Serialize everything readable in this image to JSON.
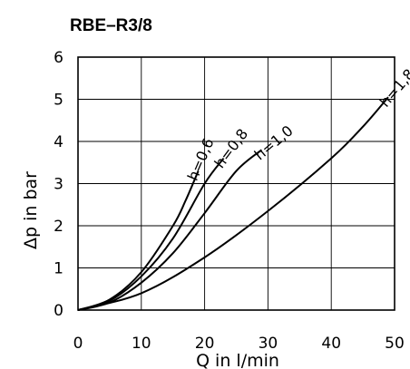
{
  "chart_data": {
    "type": "line",
    "title": "RBE–R3/8",
    "xlabel": "Q in l/min",
    "ylabel": "Δp in bar",
    "xlim": [
      0,
      50
    ],
    "ylim": [
      0,
      6
    ],
    "x_ticks": [
      "0",
      "10",
      "20",
      "30",
      "40",
      "50"
    ],
    "y_ticks": [
      "0",
      "1",
      "2",
      "3",
      "4",
      "5",
      "6"
    ],
    "grid": true,
    "series": [
      {
        "name": "h=0,6",
        "x": [
          0,
          5,
          10,
          15,
          17,
          19
        ],
        "y": [
          0,
          0.25,
          0.9,
          2.0,
          2.6,
          3.3
        ]
      },
      {
        "name": "h=0,8",
        "x": [
          0,
          5,
          10,
          15,
          20,
          23
        ],
        "y": [
          0,
          0.22,
          0.8,
          1.7,
          3.0,
          3.6
        ]
      },
      {
        "name": "h=1,0",
        "x": [
          0,
          5,
          10,
          15,
          20,
          25,
          29
        ],
        "y": [
          0,
          0.18,
          0.65,
          1.35,
          2.3,
          3.3,
          3.8
        ]
      },
      {
        "name": "h=1,8",
        "x": [
          0,
          10,
          20,
          30,
          40,
          45,
          49
        ],
        "y": [
          0,
          0.4,
          1.25,
          2.35,
          3.6,
          4.35,
          5.05
        ]
      }
    ]
  }
}
